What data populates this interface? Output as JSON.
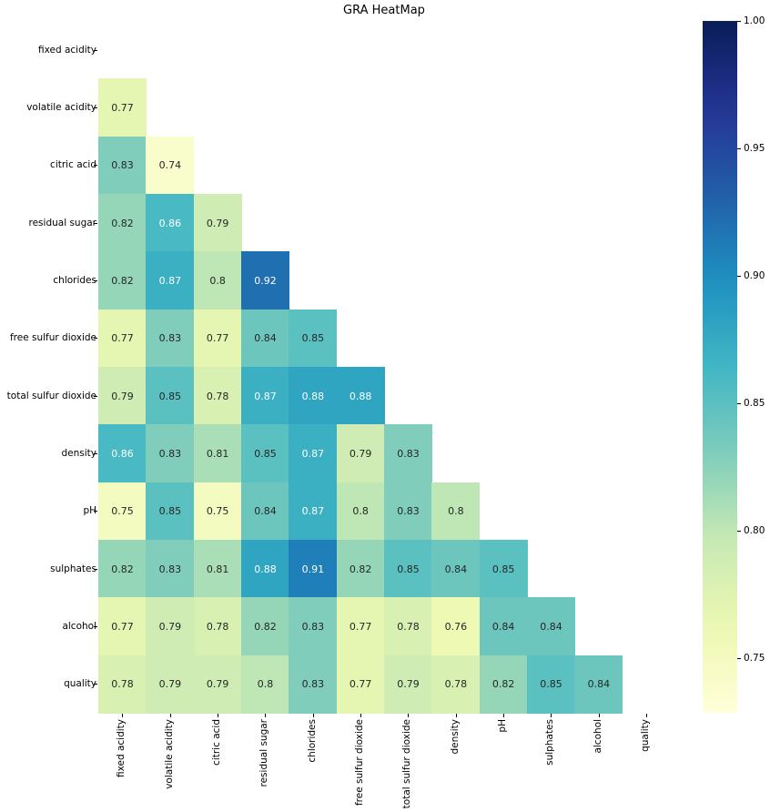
{
  "chart_data": {
    "type": "heatmap",
    "title": "GRA HeatMap",
    "xlabel": "",
    "ylabel": "",
    "mask": "upper triangle including diagonal",
    "colormap": "YlGnBu",
    "vmin": 0.7286,
    "vmax": 1.0,
    "labels": [
      "fixed acidity",
      "volatile acidity",
      "citric acid",
      "residual sugar",
      "chlorides",
      "free sulfur dioxide",
      "total sulfur dioxide",
      "density",
      "pH",
      "sulphates",
      "alcohol",
      "quality"
    ],
    "matrix": [
      [
        null,
        null,
        null,
        null,
        null,
        null,
        null,
        null,
        null,
        null,
        null,
        null
      ],
      [
        0.77,
        null,
        null,
        null,
        null,
        null,
        null,
        null,
        null,
        null,
        null,
        null
      ],
      [
        0.83,
        0.74,
        null,
        null,
        null,
        null,
        null,
        null,
        null,
        null,
        null,
        null
      ],
      [
        0.82,
        0.86,
        0.79,
        null,
        null,
        null,
        null,
        null,
        null,
        null,
        null,
        null
      ],
      [
        0.82,
        0.87,
        0.8,
        0.92,
        null,
        null,
        null,
        null,
        null,
        null,
        null,
        null
      ],
      [
        0.77,
        0.83,
        0.77,
        0.84,
        0.85,
        null,
        null,
        null,
        null,
        null,
        null,
        null
      ],
      [
        0.79,
        0.85,
        0.78,
        0.87,
        0.88,
        0.88,
        null,
        null,
        null,
        null,
        null,
        null
      ],
      [
        0.86,
        0.83,
        0.81,
        0.85,
        0.87,
        0.79,
        0.83,
        null,
        null,
        null,
        null,
        null
      ],
      [
        0.75,
        0.85,
        0.75,
        0.84,
        0.87,
        0.8,
        0.83,
        0.8,
        null,
        null,
        null,
        null
      ],
      [
        0.82,
        0.83,
        0.81,
        0.88,
        0.91,
        0.82,
        0.85,
        0.84,
        0.85,
        null,
        null,
        null
      ],
      [
        0.77,
        0.79,
        0.78,
        0.82,
        0.83,
        0.77,
        0.78,
        0.76,
        0.84,
        0.84,
        null,
        null
      ],
      [
        0.78,
        0.79,
        0.79,
        0.8,
        0.83,
        0.77,
        0.79,
        0.78,
        0.82,
        0.85,
        0.84,
        null
      ]
    ],
    "colorbar": {
      "ticks": [
        0.75,
        0.8,
        0.85,
        0.9,
        0.95,
        1.0
      ],
      "tick_labels": [
        "0.75",
        "0.80",
        "0.85",
        "0.90",
        "0.95",
        "1.00"
      ]
    }
  }
}
